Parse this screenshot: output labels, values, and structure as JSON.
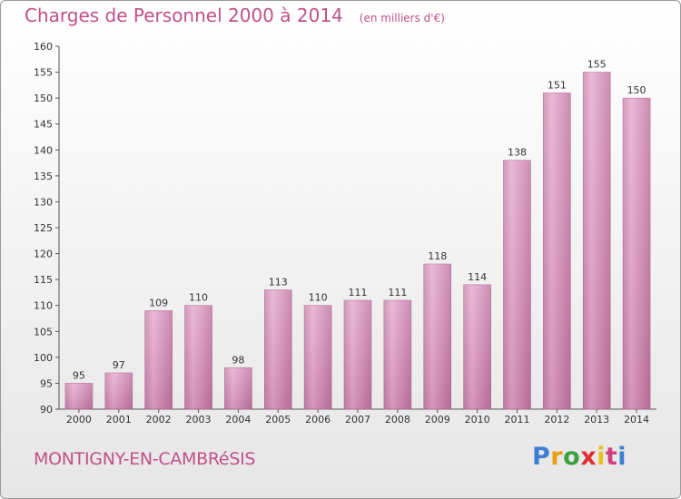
{
  "header": {
    "title": "Charges de Personnel 2000 à 2014",
    "subtitle": "(en milliers d'€)"
  },
  "footer": {
    "city": "MONTIGNY-EN-CAMBRéSIS",
    "logo_letters": [
      "P",
      "r",
      "o",
      "x",
      "i",
      "t",
      "i"
    ],
    "logo_colors": [
      "#3a7fd0",
      "#e8a010",
      "#3aa040",
      "#e03030",
      "#e8c020",
      "#d04080",
      "#3a7fd0"
    ]
  },
  "colors": {
    "bar_light": "#e9acd0",
    "bar_dark": "#b96e99",
    "text": "#333333",
    "accent": "#c0508a",
    "grid": "#666666"
  },
  "chart_data": {
    "type": "bar",
    "categories": [
      "2000",
      "2001",
      "2002",
      "2003",
      "2004",
      "2005",
      "2006",
      "2007",
      "2008",
      "2009",
      "2010",
      "2011",
      "2012",
      "2013",
      "2014"
    ],
    "values": [
      95,
      97,
      109,
      110,
      98,
      113,
      110,
      111,
      111,
      118,
      114,
      138,
      151,
      155,
      150
    ],
    "ylim": [
      90,
      160
    ],
    "yticks": [
      90,
      95,
      100,
      105,
      110,
      115,
      120,
      125,
      130,
      135,
      140,
      145,
      150,
      155,
      160
    ],
    "title": "Charges de Personnel 2000 à 2014",
    "subtitle": "(en milliers d'€)",
    "xlabel": "",
    "ylabel": "",
    "grid": false,
    "data_labels": true
  }
}
